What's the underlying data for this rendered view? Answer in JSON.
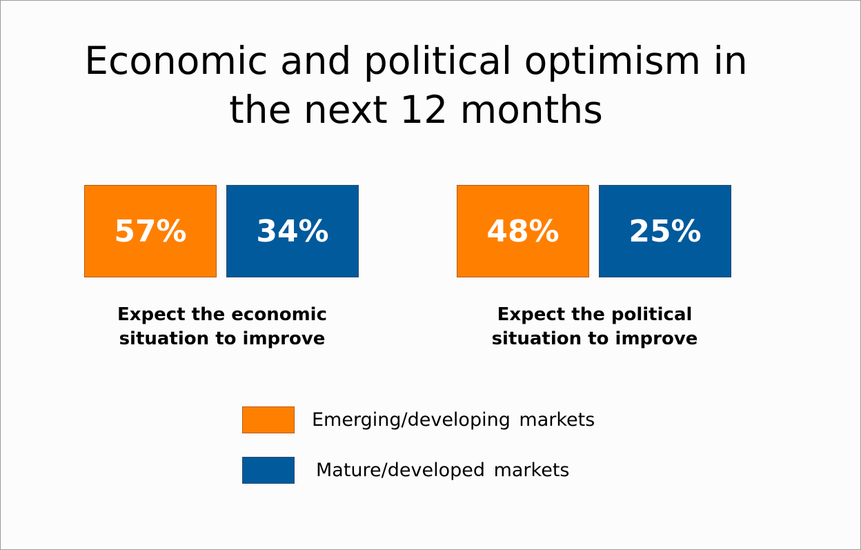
{
  "chart_data": {
    "type": "bar",
    "title": [
      "Economic and political optimism in",
      "the next 12 months"
    ],
    "categories": [
      [
        "Expect the economic",
        "situation to improve"
      ],
      [
        "Expect the political",
        "situation to improve"
      ]
    ],
    "series": [
      {
        "name": "Emerging/developing  markets",
        "color": "#ff8000",
        "values": [
          57,
          48
        ],
        "labels": [
          "57%",
          "48%"
        ]
      },
      {
        "name": "Mature/developed  markets",
        "color": "#005a9c",
        "values": [
          34,
          25
        ],
        "labels": [
          "34%",
          "25%"
        ]
      }
    ],
    "unit": "%",
    "legend": "bottom-center"
  }
}
